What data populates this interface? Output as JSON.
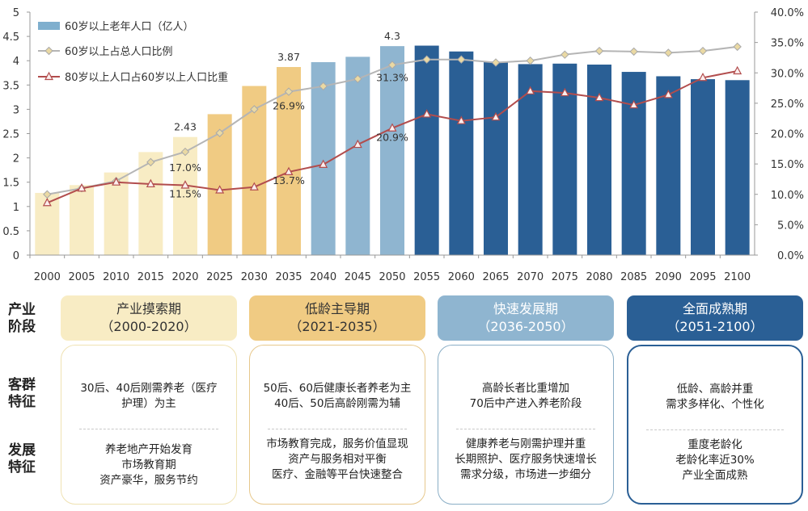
{
  "chart_data": {
    "type": "bar+line",
    "categories": [
      "2000",
      "2005",
      "2010",
      "2015",
      "2020",
      "2025",
      "2030",
      "2035",
      "2040",
      "2045",
      "2050",
      "2055",
      "2060",
      "2065",
      "2070",
      "2075",
      "2080",
      "2085",
      "2090",
      "2095",
      "2100"
    ],
    "y_left": {
      "min": 0,
      "max": 5,
      "ticks": [
        "0",
        "0.5",
        "1",
        "1.5",
        "2",
        "2.5",
        "3",
        "3.5",
        "4",
        "4.5",
        "5"
      ]
    },
    "y_right": {
      "min": 0,
      "max": 40,
      "ticks": [
        "0.0%",
        "5.0%",
        "10.0%",
        "15.0%",
        "20.0%",
        "25.0%",
        "30.0%",
        "35.0%",
        "40.0%"
      ]
    },
    "series": [
      {
        "name": "60岁以上老年人口（亿人）",
        "kind": "bar",
        "axis": "left",
        "values": [
          1.28,
          1.44,
          1.7,
          2.12,
          2.43,
          2.9,
          3.48,
          3.87,
          3.97,
          4.08,
          4.3,
          4.31,
          4.19,
          3.97,
          3.93,
          3.94,
          3.92,
          3.77,
          3.68,
          3.62,
          3.6
        ]
      },
      {
        "name": "60岁以上占总人口比例",
        "kind": "line",
        "axis": "right",
        "color": "#b5b5b5",
        "values": [
          10.0,
          11.0,
          12.2,
          15.3,
          17.0,
          20.1,
          24.0,
          26.9,
          27.8,
          29.0,
          31.3,
          32.2,
          32.2,
          31.7,
          32.0,
          33.0,
          33.6,
          33.5,
          33.3,
          33.6,
          34.3
        ]
      },
      {
        "name": "80岁以上人口占60岁以上人口比重",
        "kind": "line",
        "axis": "right",
        "color": "#b24d4d",
        "values": [
          8.6,
          11.0,
          12.0,
          11.7,
          11.5,
          10.7,
          11.2,
          13.7,
          14.9,
          18.2,
          20.9,
          23.2,
          22.1,
          22.7,
          27.0,
          26.7,
          25.9,
          24.7,
          26.4,
          29.2,
          30.3
        ]
      }
    ],
    "bar_labels": [
      {
        "index": 4,
        "text": "2.43"
      },
      {
        "index": 7,
        "text": "3.87"
      },
      {
        "index": 10,
        "text": "4.3"
      }
    ],
    "line_labels": [
      {
        "index": 4,
        "text": "17.0%"
      },
      {
        "index": 7,
        "text": "26.9%"
      },
      {
        "index": 10,
        "text": "31.3%"
      },
      {
        "index": 4,
        "text": "11.5%"
      },
      {
        "index": 7,
        "text": "13.7%"
      },
      {
        "index": 10,
        "text": "20.9%"
      }
    ],
    "legend_position": "top-left",
    "grid": false
  },
  "colors": {
    "stage1": "#f8ecc4",
    "stage2": "#f0cb83",
    "stage3": "#8fb5d0",
    "stage4": "#2a5f95",
    "stage1_border": "#efe2b3",
    "stage2_border": "#e7c88c",
    "stage3_border": "#8aaec6",
    "stage4_border": "#2a5f95"
  },
  "rows": {
    "stage_label": "产业\n阶段",
    "customer_label": "客群\n特征",
    "develop_label": "发展\n特征"
  },
  "stages": [
    {
      "name": "产业摸索期",
      "period": "（2000-2020）",
      "customer": "30后、40后刚需养老（医疗\n护理）为主",
      "develop": "养老地产开始发育\n市场教育期\n资产豪华，服务节约"
    },
    {
      "name": "低龄主导期",
      "period": "（2021-2035）",
      "customer": "50后、60后健康长者养老为主\n40后、50后高龄刚需为辅",
      "develop": "市场教育完成，服务价值显现\n资产与服务相对平衡\n医疗、金融等平台快速整合"
    },
    {
      "name": "快速发展期",
      "period": "（2036-2050）",
      "customer": "高龄长者比重增加\n70后中产进入养老阶段",
      "develop": "健康养老与刚需护理并重\n长期照护、医疗服务快速增长\n需求分级，市场进一步细分"
    },
    {
      "name": "全面成熟期",
      "period": "（2051-2100）",
      "customer": "低龄、高龄并重\n需求多样化、个性化",
      "develop": "重度老龄化\n老龄化率近30%\n产业全面成熟"
    }
  ]
}
